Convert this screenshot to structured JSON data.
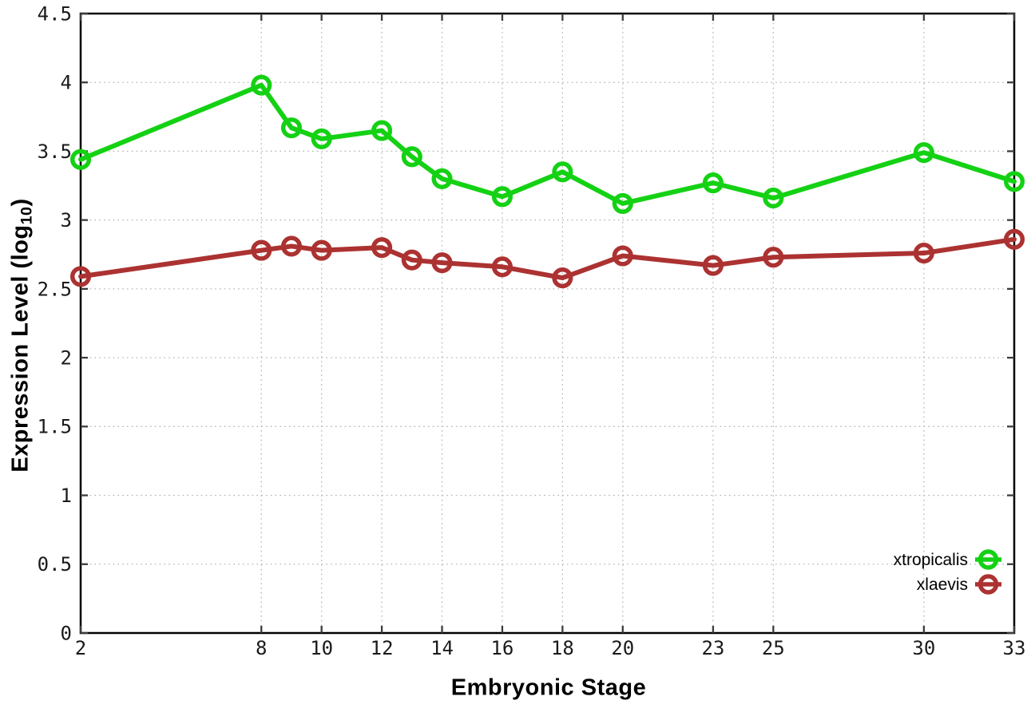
{
  "chart_data": {
    "type": "line",
    "title": "",
    "xlabel": "Embryonic Stage",
    "ylabel": "Expression Level (log10)",
    "ylabel_parts": {
      "main": "Expression Level (log",
      "sub": "10",
      "close": ")"
    },
    "x": [
      2,
      8,
      9,
      10,
      12,
      13,
      14,
      16,
      18,
      20,
      23,
      25,
      30,
      33
    ],
    "series": [
      {
        "name": "xtropicalis",
        "color": "#14d114",
        "values": [
          3.44,
          3.98,
          3.67,
          3.59,
          3.65,
          3.46,
          3.3,
          3.17,
          3.35,
          3.12,
          3.27,
          3.16,
          3.49,
          3.28
        ]
      },
      {
        "name": "xlaevis",
        "color": "#ac3232",
        "values": [
          2.59,
          2.78,
          2.81,
          2.78,
          2.8,
          2.71,
          2.69,
          2.66,
          2.58,
          2.74,
          2.67,
          2.73,
          2.76,
          2.86
        ]
      }
    ],
    "xticks": {
      "values": [
        2,
        8,
        10,
        12,
        14,
        16,
        18,
        20,
        23,
        25,
        30,
        33
      ],
      "labels": [
        "2",
        "8",
        "10",
        "12",
        "14",
        "16",
        "18",
        "20",
        "23",
        "25",
        "30",
        "33"
      ]
    },
    "yticks": {
      "values": [
        0,
        0.5,
        1,
        1.5,
        2,
        2.5,
        3,
        3.5,
        4,
        4.5
      ],
      "labels": [
        "0",
        "0.5",
        "1",
        "1.5",
        "2",
        "2.5",
        "3",
        "3.5",
        "4",
        "4.5"
      ]
    },
    "xlim": [
      2,
      33
    ],
    "ylim": [
      0,
      4.5
    ],
    "grid": true,
    "marker": "open-circle",
    "legend_position": "bottom-right"
  }
}
